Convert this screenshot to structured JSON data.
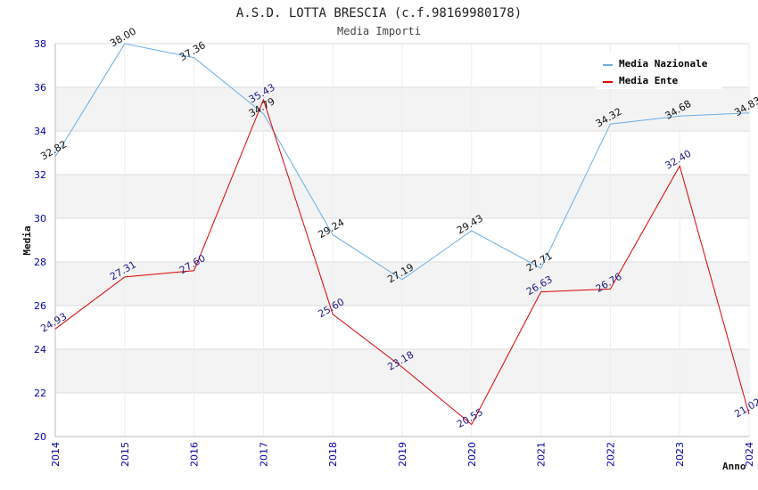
{
  "chart_data": {
    "type": "line",
    "title": "A.S.D. LOTTA BRESCIA (c.f.98169980178)",
    "subtitle": "Media Importi",
    "xlabel": "Anno",
    "ylabel": "Media",
    "ylim": [
      20,
      38
    ],
    "yticks": [
      20,
      22,
      24,
      26,
      28,
      30,
      32,
      34,
      36,
      38
    ],
    "yticks_text": [
      "20",
      "22",
      "24",
      "26",
      "28",
      "30",
      "32",
      "34",
      "36",
      "38"
    ],
    "x": [
      "2014",
      "2015",
      "2016",
      "2017",
      "2018",
      "2019",
      "2020",
      "2021",
      "2022",
      "2023",
      "2024"
    ],
    "series": [
      {
        "name": "Media Nazionale",
        "color": "#6aaee6",
        "values": [
          32.82,
          38.0,
          37.36,
          34.79,
          29.24,
          27.19,
          29.43,
          27.71,
          34.32,
          34.68,
          34.83
        ],
        "labels": [
          "32.82",
          "38.00",
          "37.36",
          "34.79",
          "29.24",
          "27.19",
          "29.43",
          "27.71",
          "34.32",
          "34.68",
          "34.83"
        ]
      },
      {
        "name": "Media Ente",
        "color": "#dd0000",
        "values": [
          24.93,
          27.31,
          27.6,
          35.43,
          25.6,
          23.18,
          20.55,
          26.63,
          26.76,
          32.4,
          21.02
        ],
        "labels": [
          "24.93",
          "27.31",
          "27.60",
          "35.43",
          "25.60",
          "23.18",
          "20.55",
          "26.63",
          "26.76",
          "32.40",
          "21.02"
        ]
      }
    ],
    "legend_position": "top-right",
    "grid": true
  }
}
